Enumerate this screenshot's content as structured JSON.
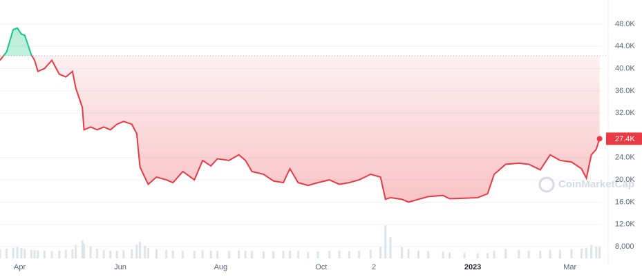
{
  "chart_data": {
    "type": "line",
    "xlim": [
      0,
      365
    ],
    "xticks": [
      {
        "value": 12,
        "label": "Apr"
      },
      {
        "value": 73,
        "label": "Jun"
      },
      {
        "value": 134,
        "label": "Aug"
      },
      {
        "value": 195,
        "label": "Oct"
      },
      {
        "value": 227,
        "label": "2"
      },
      {
        "value": 287,
        "label": "2023"
      },
      {
        "value": 346,
        "label": "Mar"
      }
    ],
    "ylim": [
      4656,
      52334
    ],
    "yticks": [
      {
        "value": 8000,
        "label": "8,000"
      },
      {
        "value": 12000,
        "label": "12.0K"
      },
      {
        "value": 16000,
        "label": "16.0K"
      },
      {
        "value": 20000,
        "label": "20.0K"
      },
      {
        "value": 24000,
        "label": "24.0K"
      },
      {
        "value": 32000,
        "label": "32.0K"
      },
      {
        "value": 36000,
        "label": "36.0K"
      },
      {
        "value": 40000,
        "label": "40.0K"
      },
      {
        "value": 44000,
        "label": "44.0K"
      },
      {
        "value": 48000,
        "label": "48.0K"
      }
    ],
    "grid": true,
    "baseline": 42300,
    "up_color": "#16c784",
    "down_color": "#ea3943",
    "x": [
      0,
      4,
      8,
      10.5,
      13,
      15,
      19,
      21,
      23,
      27,
      31.5,
      36,
      40,
      44,
      46,
      50,
      51,
      55,
      59,
      63,
      67,
      71,
      75,
      80,
      83,
      85,
      88,
      90,
      95,
      101,
      105,
      111,
      118,
      123,
      128,
      132,
      139,
      145,
      149,
      153,
      160,
      166,
      172,
      176,
      181,
      187,
      193,
      200,
      206,
      212,
      218,
      225,
      231,
      234,
      237,
      244,
      248,
      254,
      260,
      269,
      273,
      282,
      290,
      296,
      300,
      307,
      315,
      321,
      328,
      334,
      340,
      347,
      353,
      356,
      359,
      362,
      364
    ],
    "values": [
      41500,
      43000,
      47000,
      47300,
      46200,
      46000,
      42500,
      41500,
      39500,
      40000,
      41500,
      39000,
      38500,
      39500,
      36500,
      33000,
      29000,
      29500,
      29000,
      29500,
      29000,
      30000,
      30500,
      30000,
      28300,
      22300,
      20400,
      19200,
      20500,
      20000,
      19500,
      21500,
      20000,
      23500,
      22500,
      23800,
      23500,
      24500,
      23500,
      21500,
      21000,
      19800,
      19500,
      22000,
      19500,
      19000,
      19500,
      20000,
      19200,
      19500,
      20000,
      21000,
      20500,
      16500,
      16800,
      16500,
      16000,
      16500,
      17000,
      17200,
      16600,
      16700,
      16800,
      17500,
      21000,
      22800,
      23000,
      22800,
      21800,
      24500,
      23500,
      23200,
      22000,
      20300,
      24500,
      25500,
      27400
    ],
    "volume": [
      30,
      32,
      35,
      38,
      34,
      30,
      28,
      27,
      26,
      25,
      24,
      26,
      28,
      30,
      45,
      60,
      48,
      40,
      32,
      28,
      26,
      25,
      27,
      30,
      45,
      55,
      42,
      35,
      30,
      28,
      26,
      24,
      25,
      27,
      26,
      25,
      24,
      26,
      25,
      24,
      23,
      24,
      25,
      26,
      24,
      22,
      23,
      25,
      26,
      24,
      25,
      28,
      40,
      110,
      70,
      38,
      30,
      26,
      24,
      22,
      20,
      18,
      17,
      18,
      25,
      30,
      28,
      26,
      25,
      27,
      28,
      30,
      32,
      35,
      45,
      40,
      38
    ],
    "current": {
      "value": 27400,
      "label": "27.4K"
    },
    "watermark": "CoinMarketCap"
  }
}
